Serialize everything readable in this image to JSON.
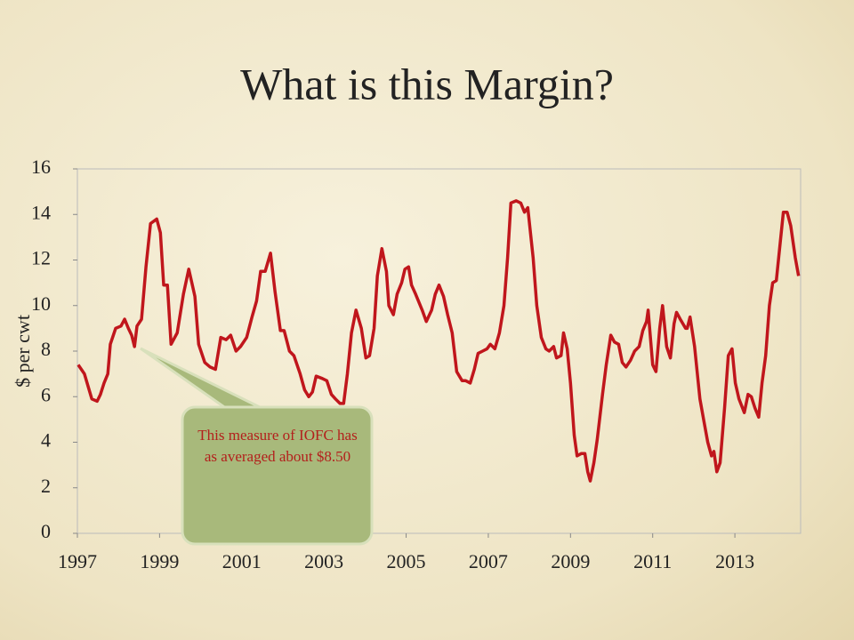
{
  "chart_data": {
    "type": "line",
    "title": "What is this Margin?",
    "ylabel": "$ per cwt",
    "annotation": "This measure of IOFC has as averaged about $8.50",
    "color": "#c0161c",
    "xlim": [
      1997,
      2014.6
    ],
    "xticks": [
      1997,
      1999,
      2001,
      2003,
      2005,
      2007,
      2009,
      2011,
      2013
    ],
    "ylim": [
      0,
      16
    ],
    "yticks": [
      0,
      2,
      4,
      6,
      8,
      10,
      12,
      14,
      16
    ],
    "grid": false,
    "x": [
      1997.02,
      1997.17,
      1997.35,
      1997.48,
      1997.56,
      1997.65,
      1997.74,
      1997.8,
      1997.93,
      1998.06,
      1998.15,
      1998.24,
      1998.32,
      1998.39,
      1998.45,
      1998.56,
      1998.67,
      1998.78,
      1998.93,
      1999.02,
      1999.1,
      1999.19,
      1999.28,
      1999.43,
      1999.58,
      1999.71,
      1999.86,
      1999.95,
      2000.1,
      2000.23,
      2000.36,
      2000.49,
      2000.62,
      2000.73,
      2000.86,
      2000.97,
      2001.12,
      2001.25,
      2001.36,
      2001.46,
      2001.57,
      2001.7,
      2001.81,
      2001.94,
      2002.03,
      2002.16,
      2002.27,
      2002.42,
      2002.53,
      2002.63,
      2002.72,
      2002.81,
      2002.96,
      2003.07,
      2003.18,
      2003.28,
      2003.39,
      2003.48,
      2003.57,
      2003.67,
      2003.78,
      2003.91,
      2004.02,
      2004.11,
      2004.22,
      2004.3,
      2004.41,
      2004.52,
      2004.58,
      2004.69,
      2004.78,
      2004.89,
      2004.97,
      2005.06,
      2005.13,
      2005.23,
      2005.39,
      2005.49,
      2005.62,
      2005.71,
      2005.8,
      2005.91,
      2006.01,
      2006.12,
      2006.23,
      2006.36,
      2006.45,
      2006.56,
      2006.66,
      2006.75,
      2006.86,
      2006.97,
      2007.05,
      2007.16,
      2007.27,
      2007.38,
      2007.47,
      2007.55,
      2007.68,
      2007.79,
      2007.88,
      2007.96,
      2008.09,
      2008.18,
      2008.29,
      2008.4,
      2008.48,
      2008.59,
      2008.66,
      2008.77,
      2008.83,
      2008.92,
      2009.0,
      2009.09,
      2009.16,
      2009.26,
      2009.35,
      2009.42,
      2009.48,
      2009.57,
      2009.65,
      2009.78,
      2009.87,
      2009.98,
      2010.07,
      2010.17,
      2010.26,
      2010.35,
      2010.46,
      2010.56,
      2010.67,
      2010.76,
      2010.85,
      2010.89,
      2011.0,
      2011.08,
      2011.17,
      2011.24,
      2011.34,
      2011.43,
      2011.52,
      2011.58,
      2011.67,
      2011.8,
      2011.84,
      2011.91,
      2012.02,
      2012.15,
      2012.25,
      2012.34,
      2012.43,
      2012.49,
      2012.56,
      2012.64,
      2012.75,
      2012.84,
      2012.93,
      2013.01,
      2013.1,
      2013.23,
      2013.32,
      2013.4,
      2013.49,
      2013.58,
      2013.66,
      2013.75,
      2013.84,
      2013.92,
      2014.01,
      2014.1,
      2014.18,
      2014.27,
      2014.36,
      2014.47,
      2014.55
    ],
    "values": [
      7.4,
      7.0,
      5.9,
      5.8,
      6.1,
      6.6,
      7.0,
      8.3,
      9.0,
      9.1,
      9.4,
      9.0,
      8.7,
      8.2,
      9.1,
      9.4,
      11.7,
      13.6,
      13.8,
      13.2,
      10.9,
      10.9,
      8.3,
      8.8,
      10.5,
      11.6,
      10.4,
      8.3,
      7.5,
      7.3,
      7.2,
      8.6,
      8.5,
      8.7,
      8.0,
      8.2,
      8.6,
      9.5,
      10.2,
      11.5,
      11.5,
      12.3,
      10.6,
      8.9,
      8.9,
      8.0,
      7.8,
      7.0,
      6.3,
      6.0,
      6.2,
      6.9,
      6.8,
      6.7,
      6.1,
      5.9,
      5.7,
      5.7,
      7.0,
      8.8,
      9.8,
      9.0,
      7.7,
      7.8,
      9.0,
      11.3,
      12.5,
      11.5,
      10.0,
      9.6,
      10.5,
      11.0,
      11.6,
      11.7,
      10.9,
      10.5,
      9.8,
      9.3,
      9.8,
      10.5,
      10.9,
      10.4,
      9.6,
      8.8,
      7.1,
      6.7,
      6.7,
      6.6,
      7.2,
      7.9,
      8.0,
      8.1,
      8.3,
      8.1,
      8.8,
      10.0,
      12.1,
      14.5,
      14.6,
      14.5,
      14.1,
      14.3,
      12.1,
      10.0,
      8.6,
      8.1,
      8.0,
      8.2,
      7.7,
      7.8,
      8.8,
      8.1,
      6.6,
      4.3,
      3.4,
      3.5,
      3.5,
      2.7,
      2.3,
      3.1,
      4.1,
      6.1,
      7.4,
      8.7,
      8.4,
      8.3,
      7.5,
      7.3,
      7.6,
      8.0,
      8.2,
      8.9,
      9.3,
      9.8,
      7.4,
      7.1,
      9.0,
      10.0,
      8.2,
      7.7,
      9.2,
      9.7,
      9.4,
      9.0,
      9.0,
      9.5,
      8.2,
      5.9,
      4.9,
      4.0,
      3.4,
      3.6,
      2.7,
      3.1,
      5.5,
      7.8,
      8.1,
      6.6,
      5.9,
      5.3,
      6.1,
      6.0,
      5.5,
      5.1,
      6.6,
      7.8,
      10.0,
      11.0,
      11.1,
      12.7,
      14.1,
      14.1,
      13.5,
      12.1,
      11.3
    ]
  }
}
